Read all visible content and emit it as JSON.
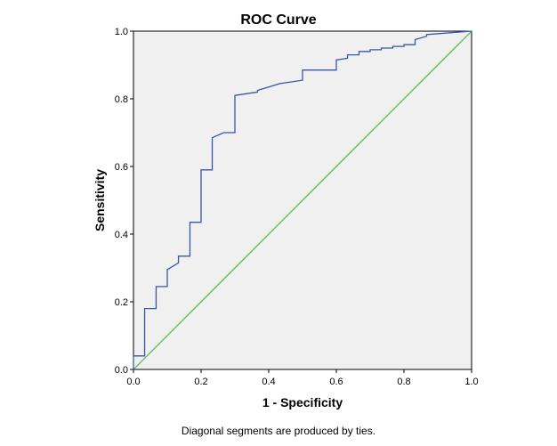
{
  "chart_data": {
    "type": "line",
    "title": "ROC Curve",
    "xlabel": "1 - Specificity",
    "ylabel": "Sensitivity",
    "xlim": [
      0,
      1
    ],
    "ylim": [
      0,
      1
    ],
    "x_ticks": [
      "0.0",
      "0.2",
      "0.4",
      "0.6",
      "0.8",
      "1.0"
    ],
    "y_ticks": [
      "0.0",
      "0.2",
      "0.4",
      "0.6",
      "0.8",
      "1.0"
    ],
    "grid": false,
    "background": "#f0f0f0",
    "footnote": "Diagonal segments are produced by ties.",
    "series": [
      {
        "style": "step",
        "color": "#3a56a8",
        "points": [
          [
            0.0,
            0.0
          ],
          [
            0.0,
            0.04
          ],
          [
            0.033,
            0.04
          ],
          [
            0.033,
            0.18
          ],
          [
            0.067,
            0.18
          ],
          [
            0.067,
            0.245
          ],
          [
            0.1,
            0.245
          ],
          [
            0.1,
            0.295
          ],
          [
            0.133,
            0.315
          ],
          [
            0.133,
            0.335
          ],
          [
            0.167,
            0.335
          ],
          [
            0.167,
            0.435
          ],
          [
            0.2,
            0.435
          ],
          [
            0.2,
            0.59
          ],
          [
            0.233,
            0.59
          ],
          [
            0.233,
            0.685
          ],
          [
            0.267,
            0.7
          ],
          [
            0.3,
            0.7
          ],
          [
            0.3,
            0.81
          ],
          [
            0.333,
            0.815
          ],
          [
            0.367,
            0.82
          ],
          [
            0.367,
            0.825
          ],
          [
            0.4,
            0.835
          ],
          [
            0.433,
            0.845
          ],
          [
            0.467,
            0.85
          ],
          [
            0.5,
            0.855
          ],
          [
            0.5,
            0.885
          ],
          [
            0.6,
            0.885
          ],
          [
            0.6,
            0.915
          ],
          [
            0.633,
            0.92
          ],
          [
            0.633,
            0.93
          ],
          [
            0.667,
            0.93
          ],
          [
            0.667,
            0.94
          ],
          [
            0.7,
            0.94
          ],
          [
            0.7,
            0.945
          ],
          [
            0.733,
            0.945
          ],
          [
            0.733,
            0.95
          ],
          [
            0.767,
            0.95
          ],
          [
            0.767,
            0.955
          ],
          [
            0.8,
            0.955
          ],
          [
            0.8,
            0.96
          ],
          [
            0.833,
            0.96
          ],
          [
            0.833,
            0.965
          ],
          [
            0.833,
            0.975
          ],
          [
            0.867,
            0.985
          ],
          [
            0.867,
            0.99
          ],
          [
            1.0,
            1.0
          ]
        ]
      },
      {
        "style": "reference",
        "color": "#4cba4c",
        "points": [
          [
            0,
            0
          ],
          [
            1,
            1
          ]
        ]
      }
    ]
  }
}
